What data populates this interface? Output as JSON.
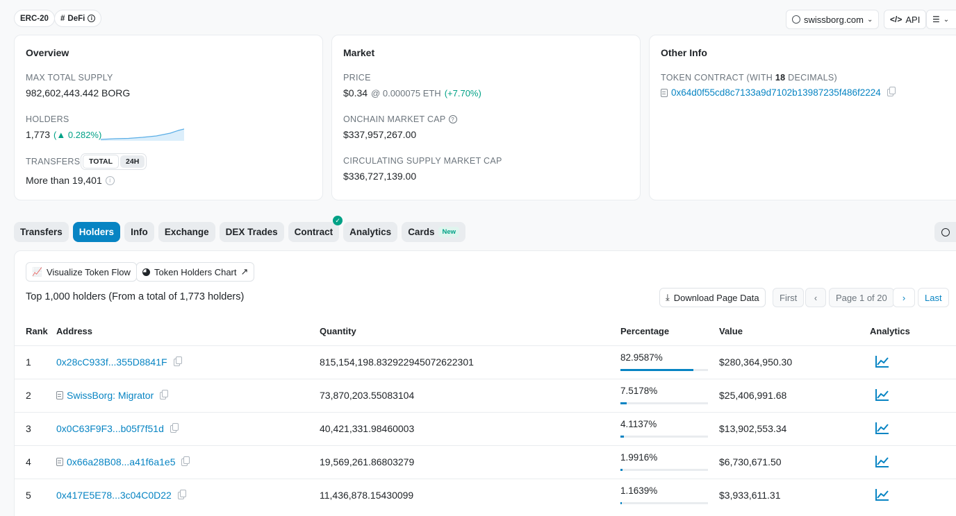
{
  "badges": {
    "erc": "ERC-20",
    "defi": "DeFi"
  },
  "top_right": {
    "website": "swissborg.com",
    "api": "API"
  },
  "overview": {
    "title": "Overview",
    "max_supply_label": "MAX TOTAL SUPPLY",
    "max_supply_value": "982,602,443.442 BORG",
    "holders_label": "HOLDERS",
    "holders_value": "1,773",
    "holders_change": "0.282%",
    "transfers_label": "TRANSFERS",
    "transfers_toggle": [
      "TOTAL",
      "24H"
    ],
    "transfers_value": "More than 19,401"
  },
  "market": {
    "title": "Market",
    "price_label": "PRICE",
    "price_value": "$0.34",
    "price_eth": "@ 0.000075 ETH",
    "price_change": "(+7.70%)",
    "onchain_cap_label": "ONCHAIN MARKET CAP",
    "onchain_cap_value": "$337,957,267.00",
    "circ_cap_label": "CIRCULATING SUPPLY MARKET CAP",
    "circ_cap_value": "$336,727,139.00"
  },
  "other_info": {
    "title": "Other Info",
    "contract_label_pre": "TOKEN CONTRACT (WITH",
    "contract_decimals": "18",
    "contract_label_post": "DECIMALS)",
    "contract_address": "0x64d0f55cd8c7133a9d7102b13987235f486f2224"
  },
  "tabs": [
    {
      "label": "Transfers"
    },
    {
      "label": "Holders"
    },
    {
      "label": "Info"
    },
    {
      "label": "Exchange"
    },
    {
      "label": "DEX Trades"
    },
    {
      "label": "Contract"
    },
    {
      "label": "Analytics"
    },
    {
      "label": "Cards"
    }
  ],
  "cards_badge": "New",
  "panel": {
    "visualize_btn": "Visualize Token Flow",
    "chart_btn": "Token Holders Chart",
    "summary": "Top 1,000 holders (From a total of 1,773 holders)",
    "download_btn": "Download Page Data",
    "pager": {
      "first": "First",
      "page": "Page 1 of 20",
      "last": "Last"
    }
  },
  "table": {
    "headers": {
      "rank": "Rank",
      "address": "Address",
      "quantity": "Quantity",
      "percentage": "Percentage",
      "value": "Value",
      "analytics": "Analytics"
    },
    "rows": [
      {
        "rank": "1",
        "address": "0x28cC933f...355D8841F",
        "quantity": "815,154,198.832922945072622301",
        "percentage": "82.9587%",
        "pct_value": 82.9587,
        "value": "$280,364,950.30"
      },
      {
        "rank": "2",
        "address": "SwissBorg: Migrator",
        "quantity": "73,870,203.55083104",
        "percentage": "7.5178%",
        "pct_value": 7.5178,
        "value": "$25,406,991.68"
      },
      {
        "rank": "3",
        "address": "0x0C63F9F3...b05f7f51d",
        "quantity": "40,421,331.98460003",
        "percentage": "4.1137%",
        "pct_value": 4.1137,
        "value": "$13,902,553.34"
      },
      {
        "rank": "4",
        "address": "0x66a28B08...a41f6a1e5",
        "quantity": "19,569,261.86803279",
        "percentage": "1.9916%",
        "pct_value": 1.9916,
        "value": "$6,730,671.50"
      },
      {
        "rank": "5",
        "address": "0x417E5E78...3c04C0D22",
        "quantity": "11,436,878.15430099",
        "percentage": "1.1639%",
        "pct_value": 1.1639,
        "value": "$3,933,611.31"
      }
    ]
  },
  "colors": {
    "accent": "#0784c3",
    "positive": "#00a186"
  }
}
